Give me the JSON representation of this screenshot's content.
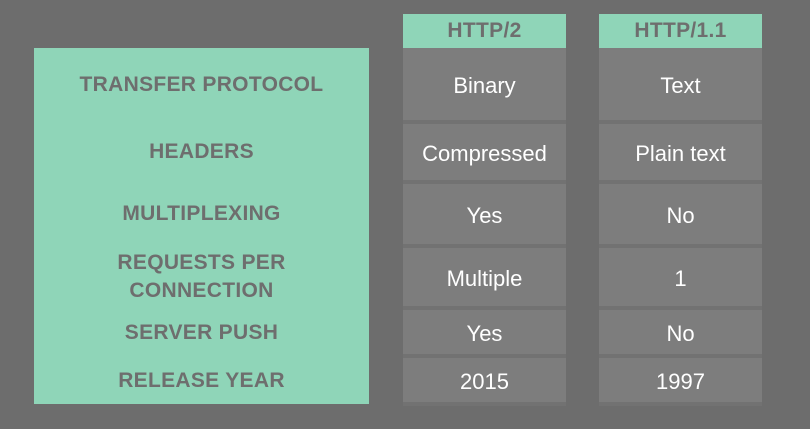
{
  "columns": [
    {
      "header": "HTTP/2",
      "values": [
        "Binary",
        "Compressed",
        "Yes",
        "Multiple",
        "Yes",
        "2015"
      ]
    },
    {
      "header": "HTTP/1.1",
      "values": [
        "Text",
        "Plain text",
        "No",
        "1",
        "No",
        "1997"
      ]
    }
  ],
  "rows": [
    "TRANSFER PROTOCOL",
    "HEADERS",
    "MULTIPLEXING",
    "REQUESTS PER CONNECTION",
    "SERVER PUSH",
    "RELEASE YEAR"
  ],
  "colors": {
    "background": "#6d6d6d",
    "accent": "#8fd5b8",
    "cell": "#7d7d7d",
    "label_text": "#6e6e6e",
    "cell_text": "#ffffff"
  }
}
